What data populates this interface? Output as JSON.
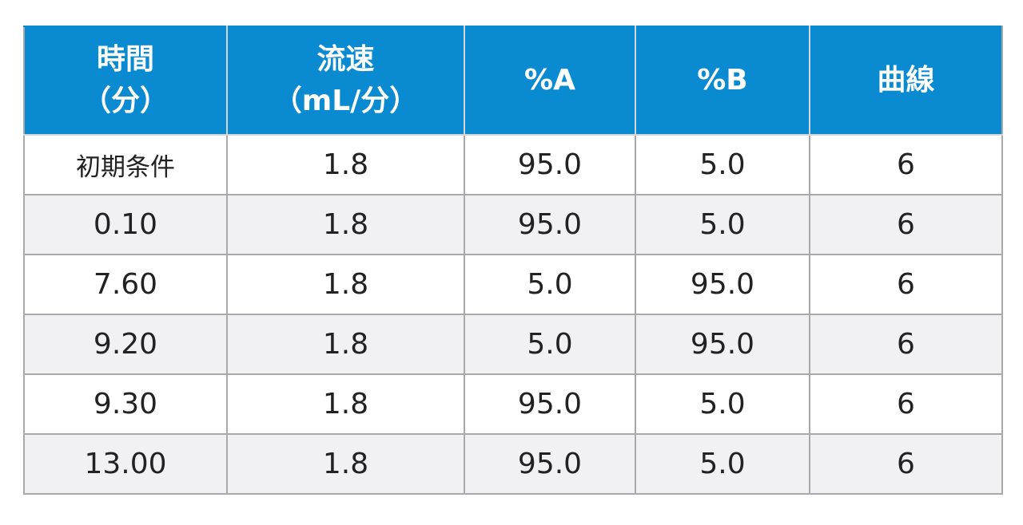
{
  "headers": [
    {
      "line1": "時間",
      "line2": "（分）"
    },
    {
      "line1": "流速",
      "line2": "（mL/分）"
    },
    {
      "line1": "%A",
      "line2": ""
    },
    {
      "line1": "%B",
      "line2": ""
    },
    {
      "line1": "曲線",
      "line2": ""
    }
  ],
  "rows": [
    [
      "初期条件",
      "1.8",
      "95.0",
      "5.0",
      "6"
    ],
    [
      "0.10",
      "1.8",
      "95.0",
      "5.0",
      "6"
    ],
    [
      "7.60",
      "1.8",
      "5.0",
      "95.0",
      "6"
    ],
    [
      "9.20",
      "1.8",
      "5.0",
      "95.0",
      "6"
    ],
    [
      "9.30",
      "1.8",
      "95.0",
      "5.0",
      "6"
    ],
    [
      "13.00",
      "1.8",
      "95.0",
      "5.0",
      "6"
    ]
  ],
  "colors": {
    "header_bg": "#0a8ad1",
    "header_text": "#ffffff",
    "stripe": "#f1f1f4",
    "border": "#a9a9a9"
  }
}
